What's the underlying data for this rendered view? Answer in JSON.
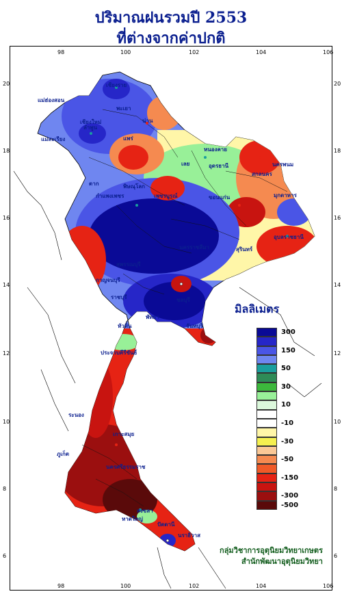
{
  "title": {
    "line1": "ปริมาณฝนรวมปี  2553",
    "line2": "ที่ต่างจากค่าปกติ"
  },
  "axis": {
    "x_ticks_top": [
      "98",
      "100",
      "102",
      "104",
      "106"
    ],
    "x_ticks_bottom": [
      "98",
      "100",
      "102",
      "104",
      "106"
    ],
    "y_ticks_left": [
      "20",
      "18",
      "16",
      "14",
      "12",
      "10",
      "8",
      "6"
    ],
    "y_ticks_right": [
      "20",
      "18",
      "16",
      "14",
      "12",
      "10",
      "8",
      "6"
    ]
  },
  "legend": {
    "unit_label": "มิลลิเมตร",
    "entries": [
      {
        "label": "300",
        "color": "#0a0a96"
      },
      {
        "label": "",
        "color": "#2626c8"
      },
      {
        "label": "150",
        "color": "#4a55e6"
      },
      {
        "label": "",
        "color": "#6f86f0"
      },
      {
        "label": "50",
        "color": "#1a9e9e"
      },
      {
        "label": "",
        "color": "#2e8b57"
      },
      {
        "label": "30",
        "color": "#3cb83c"
      },
      {
        "label": "",
        "color": "#98f098"
      },
      {
        "label": "10",
        "color": "#dcf8dc"
      },
      {
        "label": "",
        "color": "#ffffff"
      },
      {
        "label": "-10",
        "color": "#ffffff"
      },
      {
        "label": "",
        "color": "#fff6a8"
      },
      {
        "label": "-30",
        "color": "#f5f050"
      },
      {
        "label": "",
        "color": "#fac896"
      },
      {
        "label": "-50",
        "color": "#f58a50"
      },
      {
        "label": "",
        "color": "#f05a28"
      },
      {
        "label": "-150",
        "color": "#e62314"
      },
      {
        "label": "",
        "color": "#c81410"
      },
      {
        "label": "-300",
        "color": "#9b0f0f"
      },
      {
        "label": "-500",
        "color": "#5a0a0a"
      }
    ]
  },
  "credit": {
    "line1": "กลุ่มวิชาการอุตุนิยมวิทยาเกษตร",
    "line2": "สำนักพัฒนาอุตุนิยมวิทยา"
  },
  "places": [
    {
      "name": "เชียงราย"
    },
    {
      "name": "เชียงใหม่"
    },
    {
      "name": "ลำพูน"
    },
    {
      "name": "น่าน"
    },
    {
      "name": "แพร่"
    },
    {
      "name": "พะเยา"
    },
    {
      "name": "แม่ฮ่องสอน"
    },
    {
      "name": "แม่สะเรียง"
    },
    {
      "name": "ตาก"
    },
    {
      "name": "พิษณุโลก"
    },
    {
      "name": "เพชรบูรณ์"
    },
    {
      "name": "กำแพงเพชร"
    },
    {
      "name": "เลย"
    },
    {
      "name": "หนองคาย"
    },
    {
      "name": "อุดรธานี"
    },
    {
      "name": "นครพนม"
    },
    {
      "name": "สกลนคร"
    },
    {
      "name": "มุกดาหาร"
    },
    {
      "name": "ขอนแก่น"
    },
    {
      "name": "อุบลราชธานี"
    },
    {
      "name": "นครราชสีมา"
    },
    {
      "name": "สุรินทร์"
    },
    {
      "name": "สุพรรณบุรี"
    },
    {
      "name": "กาญจนบุรี"
    },
    {
      "name": "ราชบุรี"
    },
    {
      "name": "ชลบุรี"
    },
    {
      "name": "พัทยา"
    },
    {
      "name": "จันทบุรี"
    },
    {
      "name": "หัวหิน"
    },
    {
      "name": "ประจวบคีรีขันธ์"
    },
    {
      "name": "ระนอง"
    },
    {
      "name": "เกาะสมุย"
    },
    {
      "name": "ภูเก็ต"
    },
    {
      "name": "นครศรีธรรมราช"
    },
    {
      "name": "สงขลา"
    },
    {
      "name": "หาดใหญ่"
    },
    {
      "name": "ปัตตานี"
    },
    {
      "name": "นราธิวาส"
    }
  ],
  "colors": {
    "title": "#0b1f8f",
    "credit": "#115c1c"
  }
}
